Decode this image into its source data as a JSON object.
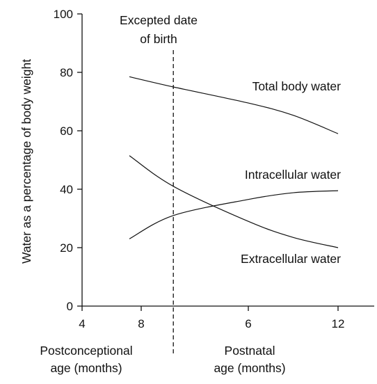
{
  "chart_data": {
    "type": "line",
    "title": "",
    "ylabel": "Water as a percentage of body weight",
    "ylim": [
      0,
      100
    ],
    "yticks": [
      0,
      20,
      40,
      60,
      80,
      100
    ],
    "x_tick_labels": [
      "4",
      "8",
      "6",
      "12"
    ],
    "x_scale_note_positions": [
      0,
      1,
      2,
      3
    ],
    "x_groups": [
      {
        "label_line1": "Postconceptional",
        "label_line2": "age (months)"
      },
      {
        "label_line1": "Postnatal",
        "label_line2": "age (months)"
      }
    ],
    "birth_marker": {
      "label_line1": "Excepted date",
      "label_line2": "of birth",
      "x": 1.3
    },
    "x_range": [
      0,
      3.6
    ],
    "grid": false,
    "legend": "none (curves labelled directly)",
    "series": [
      {
        "name": "Total body water",
        "x": [
          0.8,
          1.3,
          2.0,
          2.5,
          3.0
        ],
        "values": [
          78.5,
          75,
          69.5,
          65.3,
          59
        ]
      },
      {
        "name": "Intracellular water",
        "x": [
          0.8,
          1.3,
          2.0,
          2.5,
          3.0
        ],
        "values": [
          23,
          31,
          36.5,
          38.8,
          39.5
        ]
      },
      {
        "name": "Extracellular water",
        "x": [
          0.8,
          1.3,
          2.0,
          2.5,
          3.0
        ],
        "values": [
          51.5,
          41,
          29,
          23.5,
          20
        ]
      }
    ]
  }
}
